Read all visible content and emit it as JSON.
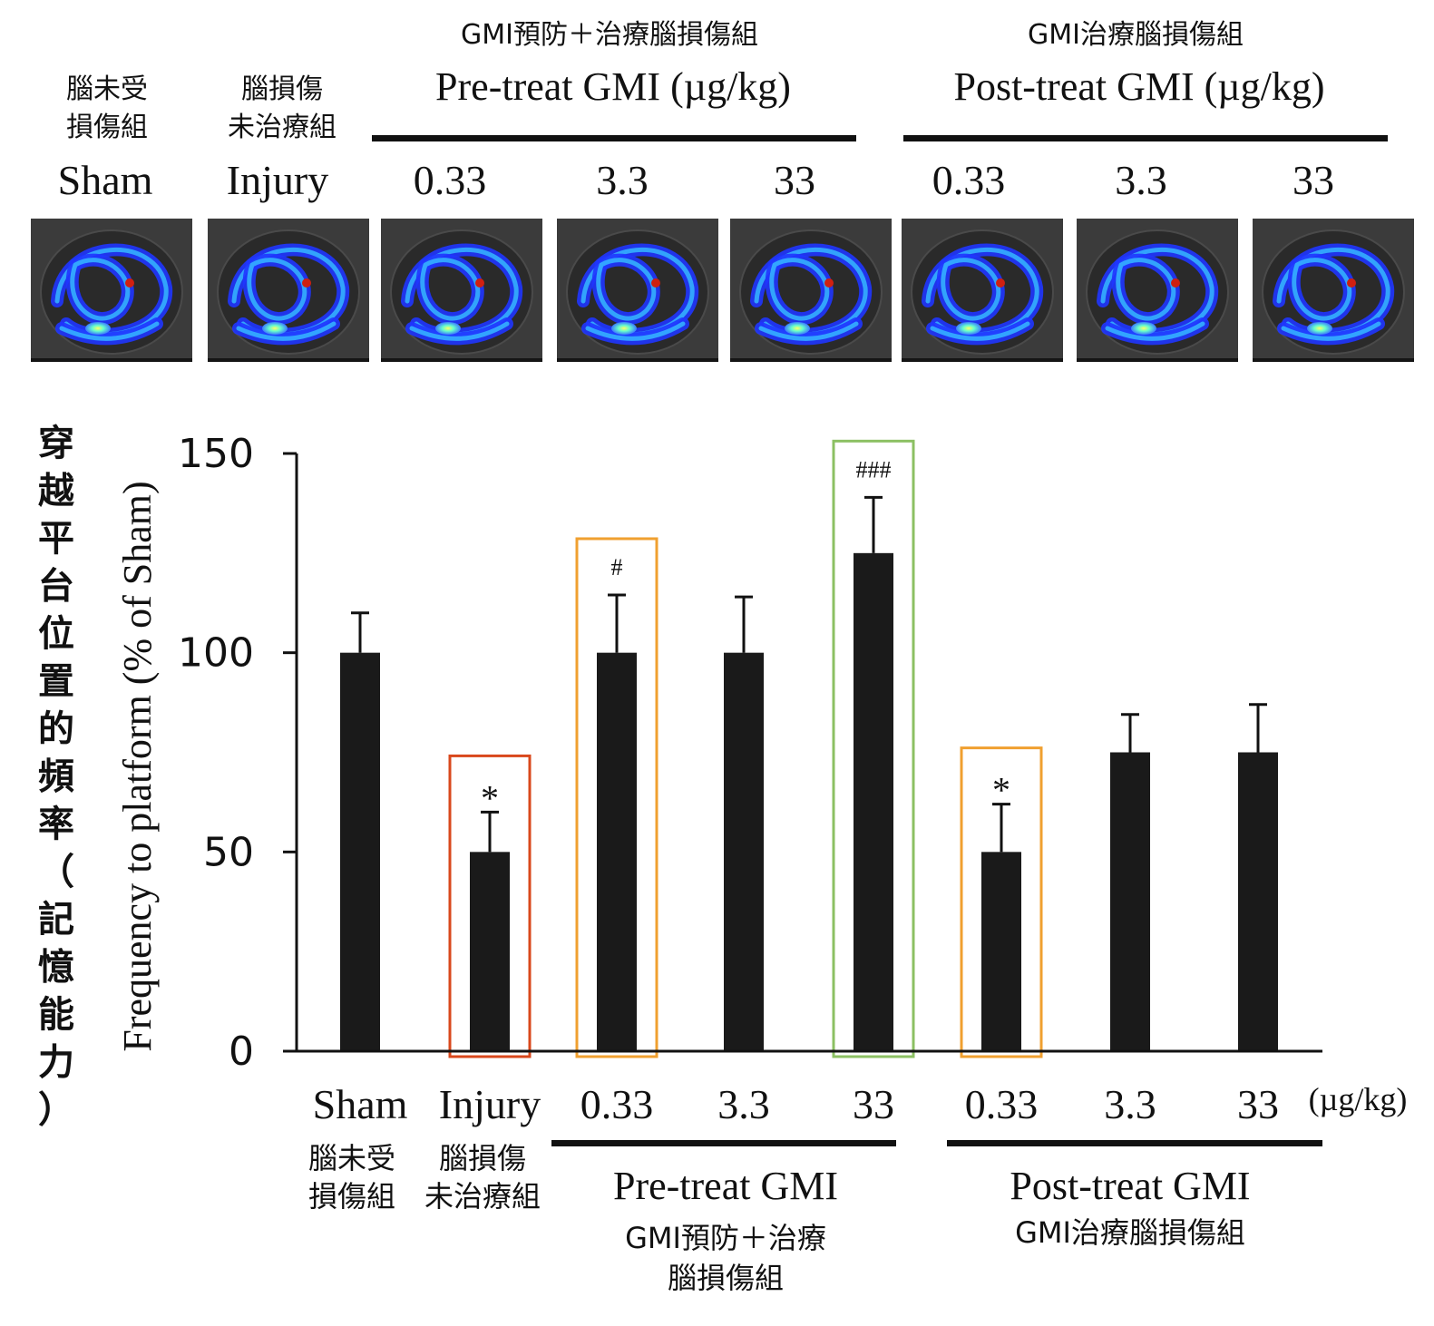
{
  "header": {
    "pre_group_cn": "GMI預防＋治療腦損傷組",
    "post_group_cn": "GMI治療腦損傷組",
    "pre_group_en": "Pre-treat GMI (µg/kg)",
    "post_group_en": "Post-treat GMI (µg/kg)",
    "sham_cn_line1": "腦未受",
    "sham_cn_line2": "損傷組",
    "injury_cn_line1": "腦損傷",
    "injury_cn_line2": "未治療組",
    "column_labels": [
      "Sham",
      "Injury",
      "0.33",
      "3.3",
      "33",
      "0.33",
      "3.3",
      "33"
    ]
  },
  "trace_images": {
    "description_labels": [
      "Sham",
      "Injury",
      "Pre 0.33",
      "Pre 3.3",
      "Pre 33",
      "Post 0.33",
      "Post 3.3",
      "Post 33"
    ]
  },
  "y_axis_cn": "穿越平台位置的頻率（記憶能力）",
  "chart_data": {
    "type": "bar",
    "title": "",
    "ylabel": "Frequency to platform (% of Sham)",
    "xlabel": "",
    "ylim": [
      0,
      150
    ],
    "yticks": [
      0,
      50,
      100,
      150
    ],
    "categories": [
      "Sham",
      "Injury",
      "0.33",
      "3.3",
      "33",
      "0.33",
      "3.3",
      "33"
    ],
    "unit_label": "(µg/kg)",
    "values": [
      100,
      50,
      100,
      100,
      125,
      50,
      75,
      75
    ],
    "errors": [
      10,
      10,
      14.5,
      14,
      14,
      12,
      9.5,
      12
    ],
    "annotations": [
      "",
      "*",
      "#",
      "",
      "###",
      "*",
      "",
      ""
    ],
    "highlight_boxes": [
      "",
      "#d9481c",
      "#f0a030",
      "",
      "#8cc063",
      "#f0a030",
      "",
      ""
    ],
    "bar_color": "#1a1a1a",
    "x_groups": [
      {
        "name": "Pre-treat GMI",
        "cn_line1": "GMI預防＋治療",
        "cn_line2": "腦損傷組"
      },
      {
        "name": "Post-treat GMI",
        "cn_line1": "GMI治療腦損傷組",
        "cn_line2": ""
      }
    ],
    "x_cn_labels": [
      {
        "line1": "腦未受",
        "line2": "損傷組"
      },
      {
        "line1": "腦損傷",
        "line2": "未治療組"
      }
    ]
  }
}
